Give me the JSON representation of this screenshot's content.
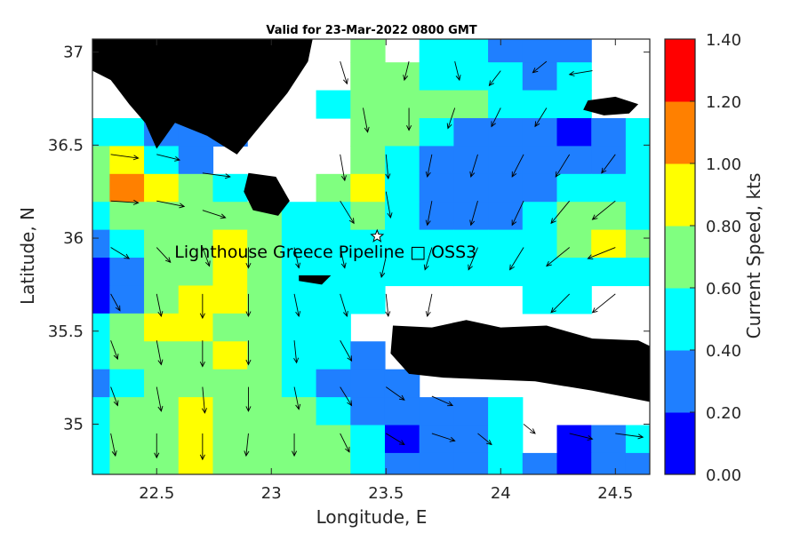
{
  "chart_data": {
    "type": "heatmap",
    "title": "Valid for 23-Mar-2022 0800 GMT",
    "xlabel": "Longitude, E",
    "ylabel": "Latitude, N",
    "xlim": [
      22.22,
      24.65
    ],
    "ylim": [
      34.73,
      37.07
    ],
    "x_ticks": [
      "22.5",
      "23",
      "23.5",
      "24",
      "24.5"
    ],
    "x_tick_values": [
      22.5,
      23,
      23.5,
      24,
      24.5
    ],
    "y_ticks": [
      "37",
      "36.5",
      "36",
      "35.5",
      "35"
    ],
    "y_tick_values": [
      37,
      36.5,
      36,
      35.5,
      35
    ],
    "annotation": "Lighthouse Greece Pipeline □ OSS3",
    "annotation_lon": 23.5,
    "annotation_lat": 36.0,
    "colorbar": {
      "label": "Current Speed, kts",
      "ticks": [
        "0.00",
        "0.20",
        "0.40",
        "0.60",
        "0.80",
        "1.00",
        "1.20",
        "1.40"
      ],
      "min": 0,
      "max": 1.4,
      "colors": [
        "#0000ff",
        "#1f7fff",
        "#00ffff",
        "#80ff80",
        "#ffff00",
        "#ff8000",
        "#ff0000"
      ]
    },
    "x": [
      22.22,
      22.37,
      22.52,
      22.67,
      22.82,
      22.97,
      23.12,
      23.27,
      23.42,
      23.57,
      23.72,
      23.87,
      24.02,
      24.17,
      24.32,
      24.47,
      24.62
    ],
    "y": [
      37.02,
      36.87,
      36.72,
      36.57,
      36.42,
      36.27,
      36.12,
      35.97,
      35.82,
      35.67,
      35.52,
      35.37,
      35.22,
      35.07,
      34.92,
      34.77
    ],
    "speed": [
      [
        -1,
        -1,
        -1,
        -1,
        -1,
        -1,
        -1,
        -1,
        0.7,
        -1,
        0.5,
        0.5,
        0.3,
        0.3,
        0.3,
        -1,
        -1
      ],
      [
        -1,
        -1,
        -1,
        -1,
        -1,
        -1,
        -1,
        -1,
        0.7,
        0.7,
        0.5,
        0.5,
        0.5,
        0.3,
        0.5,
        -1,
        -1
      ],
      [
        -1,
        -1,
        -1,
        0.3,
        -1,
        -1,
        -1,
        0.5,
        0.7,
        0.7,
        0.7,
        0.7,
        0.5,
        0.5,
        0.5,
        -1,
        -1
      ],
      [
        0.5,
        0.5,
        0.3,
        0.3,
        0.3,
        -1,
        -1,
        -1,
        0.7,
        0.7,
        0.5,
        0.3,
        0.3,
        0.3,
        0.1,
        0.3,
        0.5
      ],
      [
        0.7,
        0.9,
        0.5,
        0.3,
        -1,
        -1,
        -1,
        -1,
        0.7,
        0.5,
        0.3,
        0.3,
        0.3,
        0.3,
        0.3,
        0.3,
        0.5
      ],
      [
        0.7,
        1.1,
        0.9,
        0.7,
        0.5,
        -1,
        -1,
        0.7,
        0.9,
        0.5,
        0.3,
        0.3,
        0.3,
        0.3,
        0.5,
        0.5,
        0.5
      ],
      [
        0.5,
        0.7,
        0.7,
        0.7,
        0.7,
        0.7,
        0.5,
        0.5,
        0.7,
        0.5,
        0.3,
        0.3,
        0.3,
        0.5,
        0.7,
        0.7,
        0.5
      ],
      [
        0.3,
        0.5,
        0.7,
        0.7,
        0.9,
        0.7,
        0.5,
        0.5,
        0.5,
        0.5,
        0.5,
        0.5,
        0.5,
        0.5,
        0.7,
        0.9,
        0.7
      ],
      [
        0.1,
        0.3,
        0.7,
        0.7,
        0.9,
        0.7,
        0.5,
        0.5,
        0.5,
        0.5,
        0.5,
        0.5,
        0.5,
        0.5,
        0.5,
        0.5,
        0.5
      ],
      [
        0.1,
        0.3,
        0.7,
        0.9,
        0.9,
        0.7,
        0.5,
        0.5,
        0.5,
        -1,
        -1,
        -1,
        -1,
        0.5,
        0.5,
        -1,
        -1
      ],
      [
        0.5,
        0.7,
        0.9,
        0.9,
        0.7,
        0.7,
        0.5,
        0.5,
        -1,
        -1,
        -1,
        -1,
        -1,
        -1,
        -1,
        -1,
        -1
      ],
      [
        0.5,
        0.7,
        0.7,
        0.7,
        0.9,
        0.7,
        0.5,
        0.5,
        0.3,
        -1,
        -1,
        -1,
        -1,
        -1,
        -1,
        -1,
        -1
      ],
      [
        0.3,
        0.5,
        0.7,
        0.7,
        0.7,
        0.7,
        0.5,
        0.3,
        0.3,
        0.3,
        -1,
        -1,
        -1,
        -1,
        -1,
        -1,
        -1
      ],
      [
        0.5,
        0.7,
        0.7,
        0.9,
        0.7,
        0.7,
        0.7,
        0.5,
        0.3,
        0.3,
        0.3,
        0.3,
        0.5,
        -1,
        -1,
        -1,
        -1
      ],
      [
        0.5,
        0.7,
        0.7,
        0.9,
        0.7,
        0.7,
        0.7,
        0.7,
        0.5,
        0.1,
        0.3,
        0.3,
        0.5,
        -1,
        0.1,
        0.3,
        0.5
      ],
      [
        0.5,
        0.7,
        0.7,
        0.9,
        0.7,
        0.7,
        0.7,
        0.7,
        0.5,
        0.3,
        0.3,
        0.3,
        0.5,
        0.3,
        0.1,
        0.3,
        0.3
      ]
    ],
    "land": [
      [
        [
          22.22,
          37.07
        ],
        [
          23.18,
          37.07
        ],
        [
          23.16,
          36.95
        ],
        [
          23.07,
          36.78
        ],
        [
          22.95,
          36.6
        ],
        [
          22.85,
          36.45
        ],
        [
          22.72,
          36.55
        ],
        [
          22.58,
          36.62
        ],
        [
          22.5,
          36.48
        ],
        [
          22.45,
          36.62
        ],
        [
          22.38,
          36.72
        ],
        [
          22.3,
          36.85
        ],
        [
          22.22,
          36.9
        ]
      ],
      [
        [
          22.9,
          36.35
        ],
        [
          23.02,
          36.33
        ],
        [
          23.08,
          36.2
        ],
        [
          23.03,
          36.12
        ],
        [
          22.92,
          36.15
        ],
        [
          22.88,
          36.25
        ]
      ],
      [
        [
          23.53,
          35.53
        ],
        [
          23.7,
          35.52
        ],
        [
          23.85,
          35.56
        ],
        [
          24.0,
          35.52
        ],
        [
          24.2,
          35.53
        ],
        [
          24.4,
          35.46
        ],
        [
          24.6,
          35.45
        ],
        [
          24.65,
          35.42
        ],
        [
          24.65,
          35.12
        ],
        [
          24.4,
          35.18
        ],
        [
          24.15,
          35.23
        ],
        [
          23.95,
          35.24
        ],
        [
          23.75,
          35.25
        ],
        [
          23.6,
          35.27
        ],
        [
          23.52,
          35.38
        ]
      ],
      [
        [
          24.38,
          36.74
        ],
        [
          24.5,
          36.76
        ],
        [
          24.6,
          36.72
        ],
        [
          24.56,
          36.67
        ],
        [
          24.45,
          36.66
        ],
        [
          24.36,
          36.69
        ]
      ],
      [
        [
          23.12,
          35.8
        ],
        [
          23.26,
          35.8
        ],
        [
          23.22,
          35.75
        ],
        [
          23.12,
          35.77
        ]
      ]
    ],
    "arrows": [
      [
        22.3,
        36.9,
        0.03,
        -0.08
      ],
      [
        22.5,
        36.9,
        0.05,
        -0.1
      ],
      [
        22.7,
        36.8,
        0.04,
        -0.09
      ],
      [
        23.3,
        36.95,
        0.03,
        -0.12
      ],
      [
        23.6,
        36.95,
        -0.02,
        -0.1
      ],
      [
        23.8,
        36.95,
        0.02,
        -0.1
      ],
      [
        24.0,
        36.9,
        -0.05,
        -0.08
      ],
      [
        24.2,
        36.95,
        -0.06,
        -0.06
      ],
      [
        24.4,
        36.9,
        -0.1,
        -0.02
      ],
      [
        23.4,
        36.7,
        0.02,
        -0.13
      ],
      [
        23.6,
        36.7,
        0.0,
        -0.12
      ],
      [
        23.8,
        36.7,
        -0.03,
        -0.11
      ],
      [
        24.0,
        36.7,
        -0.04,
        -0.1
      ],
      [
        24.2,
        36.7,
        -0.05,
        -0.1
      ],
      [
        22.3,
        36.45,
        0.12,
        -0.02
      ],
      [
        22.5,
        36.45,
        0.1,
        -0.03
      ],
      [
        22.7,
        36.35,
        0.12,
        -0.02
      ],
      [
        23.3,
        36.45,
        0.02,
        -0.14
      ],
      [
        23.5,
        36.45,
        0.01,
        -0.13
      ],
      [
        23.7,
        36.45,
        -0.02,
        -0.12
      ],
      [
        23.9,
        36.45,
        -0.03,
        -0.12
      ],
      [
        24.1,
        36.45,
        -0.05,
        -0.12
      ],
      [
        24.3,
        36.45,
        -0.06,
        -0.12
      ],
      [
        24.5,
        36.45,
        -0.06,
        -0.1
      ],
      [
        22.3,
        36.2,
        0.12,
        -0.01
      ],
      [
        22.5,
        36.2,
        0.12,
        -0.03
      ],
      [
        22.7,
        36.15,
        0.1,
        -0.04
      ],
      [
        23.3,
        36.2,
        0.06,
        -0.12
      ],
      [
        23.5,
        36.25,
        0.02,
        -0.14
      ],
      [
        23.7,
        36.2,
        -0.02,
        -0.13
      ],
      [
        23.9,
        36.2,
        -0.03,
        -0.13
      ],
      [
        24.1,
        36.2,
        -0.05,
        -0.13
      ],
      [
        24.3,
        36.2,
        -0.08,
        -0.12
      ],
      [
        24.5,
        36.2,
        -0.1,
        -0.1
      ],
      [
        22.3,
        35.95,
        0.08,
        -0.06
      ],
      [
        22.5,
        35.95,
        0.06,
        -0.08
      ],
      [
        22.7,
        35.95,
        0.03,
        -0.1
      ],
      [
        22.9,
        35.95,
        0.0,
        -0.11
      ],
      [
        23.1,
        35.95,
        0.02,
        -0.11
      ],
      [
        23.3,
        35.95,
        0.02,
        -0.11
      ],
      [
        23.5,
        35.9,
        -0.02,
        -0.11
      ],
      [
        23.7,
        35.95,
        -0.03,
        -0.12
      ],
      [
        23.9,
        35.95,
        -0.04,
        -0.12
      ],
      [
        24.1,
        35.95,
        -0.06,
        -0.12
      ],
      [
        24.3,
        35.95,
        -0.1,
        -0.1
      ],
      [
        24.5,
        35.95,
        -0.12,
        -0.06
      ],
      [
        22.3,
        35.7,
        0.04,
        -0.09
      ],
      [
        22.5,
        35.7,
        0.02,
        -0.12
      ],
      [
        22.7,
        35.7,
        0.0,
        -0.13
      ],
      [
        22.9,
        35.7,
        0.0,
        -0.12
      ],
      [
        23.1,
        35.7,
        0.02,
        -0.12
      ],
      [
        23.3,
        35.7,
        0.03,
        -0.12
      ],
      [
        23.5,
        35.7,
        0.01,
        -0.12
      ],
      [
        23.7,
        35.7,
        -0.02,
        -0.12
      ],
      [
        24.3,
        35.7,
        -0.08,
        -0.1
      ],
      [
        24.5,
        35.7,
        -0.1,
        -0.1
      ],
      [
        22.3,
        35.45,
        0.03,
        -0.1
      ],
      [
        22.5,
        35.45,
        0.02,
        -0.13
      ],
      [
        22.7,
        35.45,
        0.0,
        -0.14
      ],
      [
        22.9,
        35.45,
        0.0,
        -0.13
      ],
      [
        23.1,
        35.45,
        0.01,
        -0.12
      ],
      [
        23.3,
        35.45,
        0.05,
        -0.11
      ],
      [
        22.3,
        35.2,
        0.03,
        -0.1
      ],
      [
        22.5,
        35.2,
        0.02,
        -0.13
      ],
      [
        22.7,
        35.2,
        0.01,
        -0.14
      ],
      [
        22.9,
        35.2,
        0.0,
        -0.13
      ],
      [
        23.1,
        35.2,
        0.02,
        -0.12
      ],
      [
        23.3,
        35.2,
        0.05,
        -0.1
      ],
      [
        23.5,
        35.2,
        0.08,
        -0.07
      ],
      [
        23.7,
        35.15,
        0.09,
        -0.05
      ],
      [
        22.3,
        34.95,
        0.02,
        -0.12
      ],
      [
        22.5,
        34.95,
        0.0,
        -0.13
      ],
      [
        22.7,
        34.95,
        0.0,
        -0.14
      ],
      [
        22.9,
        34.95,
        -0.01,
        -0.12
      ],
      [
        23.1,
        34.95,
        0.0,
        -0.12
      ],
      [
        23.3,
        34.95,
        0.04,
        -0.1
      ],
      [
        23.5,
        34.95,
        0.08,
        -0.06
      ],
      [
        23.7,
        34.95,
        0.1,
        -0.04
      ],
      [
        23.9,
        34.95,
        0.06,
        -0.06
      ],
      [
        24.1,
        35.0,
        0.05,
        -0.05
      ],
      [
        24.3,
        34.95,
        0.1,
        -0.03
      ],
      [
        24.5,
        34.95,
        0.12,
        -0.02
      ]
    ]
  }
}
